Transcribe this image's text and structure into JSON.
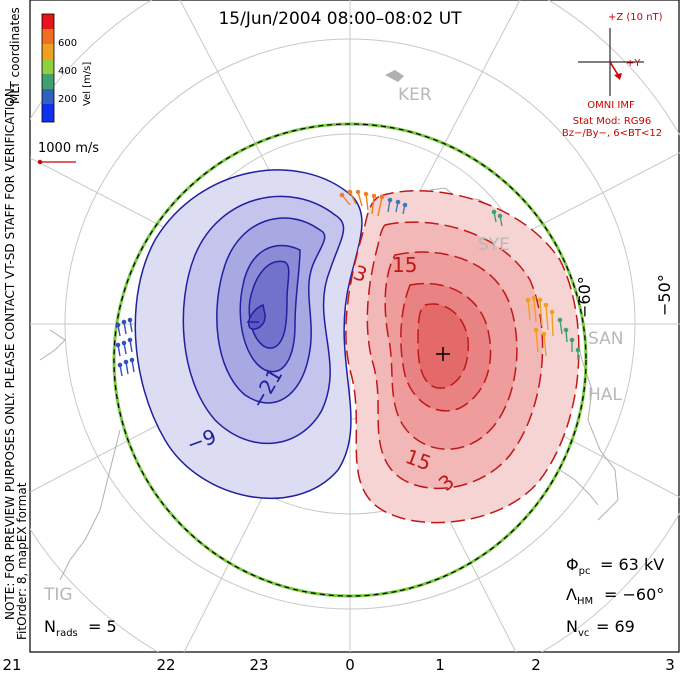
{
  "title": "15/Jun/2004 08:00–08:02 UT",
  "colorbar": {
    "ticks": [
      "600",
      "400",
      "200"
    ],
    "unit_label": "Vel [m/s]",
    "colors": [
      "#e8141c",
      "#f07020",
      "#f0a020",
      "#90d040",
      "#40a070",
      "#3060c0",
      "#1030f0"
    ]
  },
  "coord_label": "MLT coordinates",
  "vector_scale_label": "1000 m/s",
  "preview_note": "NOTE: FOR PREVIEW PURPOSES ONLY. PLEASE CONTACT VT-SD STAFF FOR VERIFICATION.",
  "fit_note": "FitOrder: 8, mapEX format",
  "imf": {
    "z_label": "+Z (10 nT)",
    "y_label": "+Y",
    "source": "OMNI IMF",
    "stat_mod": "Stat Mod: RG96",
    "condition": "Bz−/By−, 6<BT<12"
  },
  "stations": [
    "KER",
    "SYE",
    "SAN",
    "HAL",
    "TIG"
  ],
  "lat_labels": [
    "−60°",
    "−50°"
  ],
  "contours": {
    "negative": [
      "−9",
      "−21"
    ],
    "positive": [
      "15",
      "15",
      "3",
      "3"
    ]
  },
  "stats": {
    "phi_pc_label": "Φ",
    "phi_pc_sub": "pc",
    "phi_pc_value": "= 63 kV",
    "lambda_label": "Λ",
    "lambda_sub": "HM",
    "lambda_value": "= −60°",
    "nvc_label": "N",
    "nvc_sub": "vc",
    "nvc_value": "= 69",
    "nrads_label": "N",
    "nrads_sub": "rads",
    "nrads_value": "= 5"
  },
  "mlt_axis": [
    "21",
    "22",
    "23",
    "0",
    "1",
    "2",
    "3"
  ]
}
